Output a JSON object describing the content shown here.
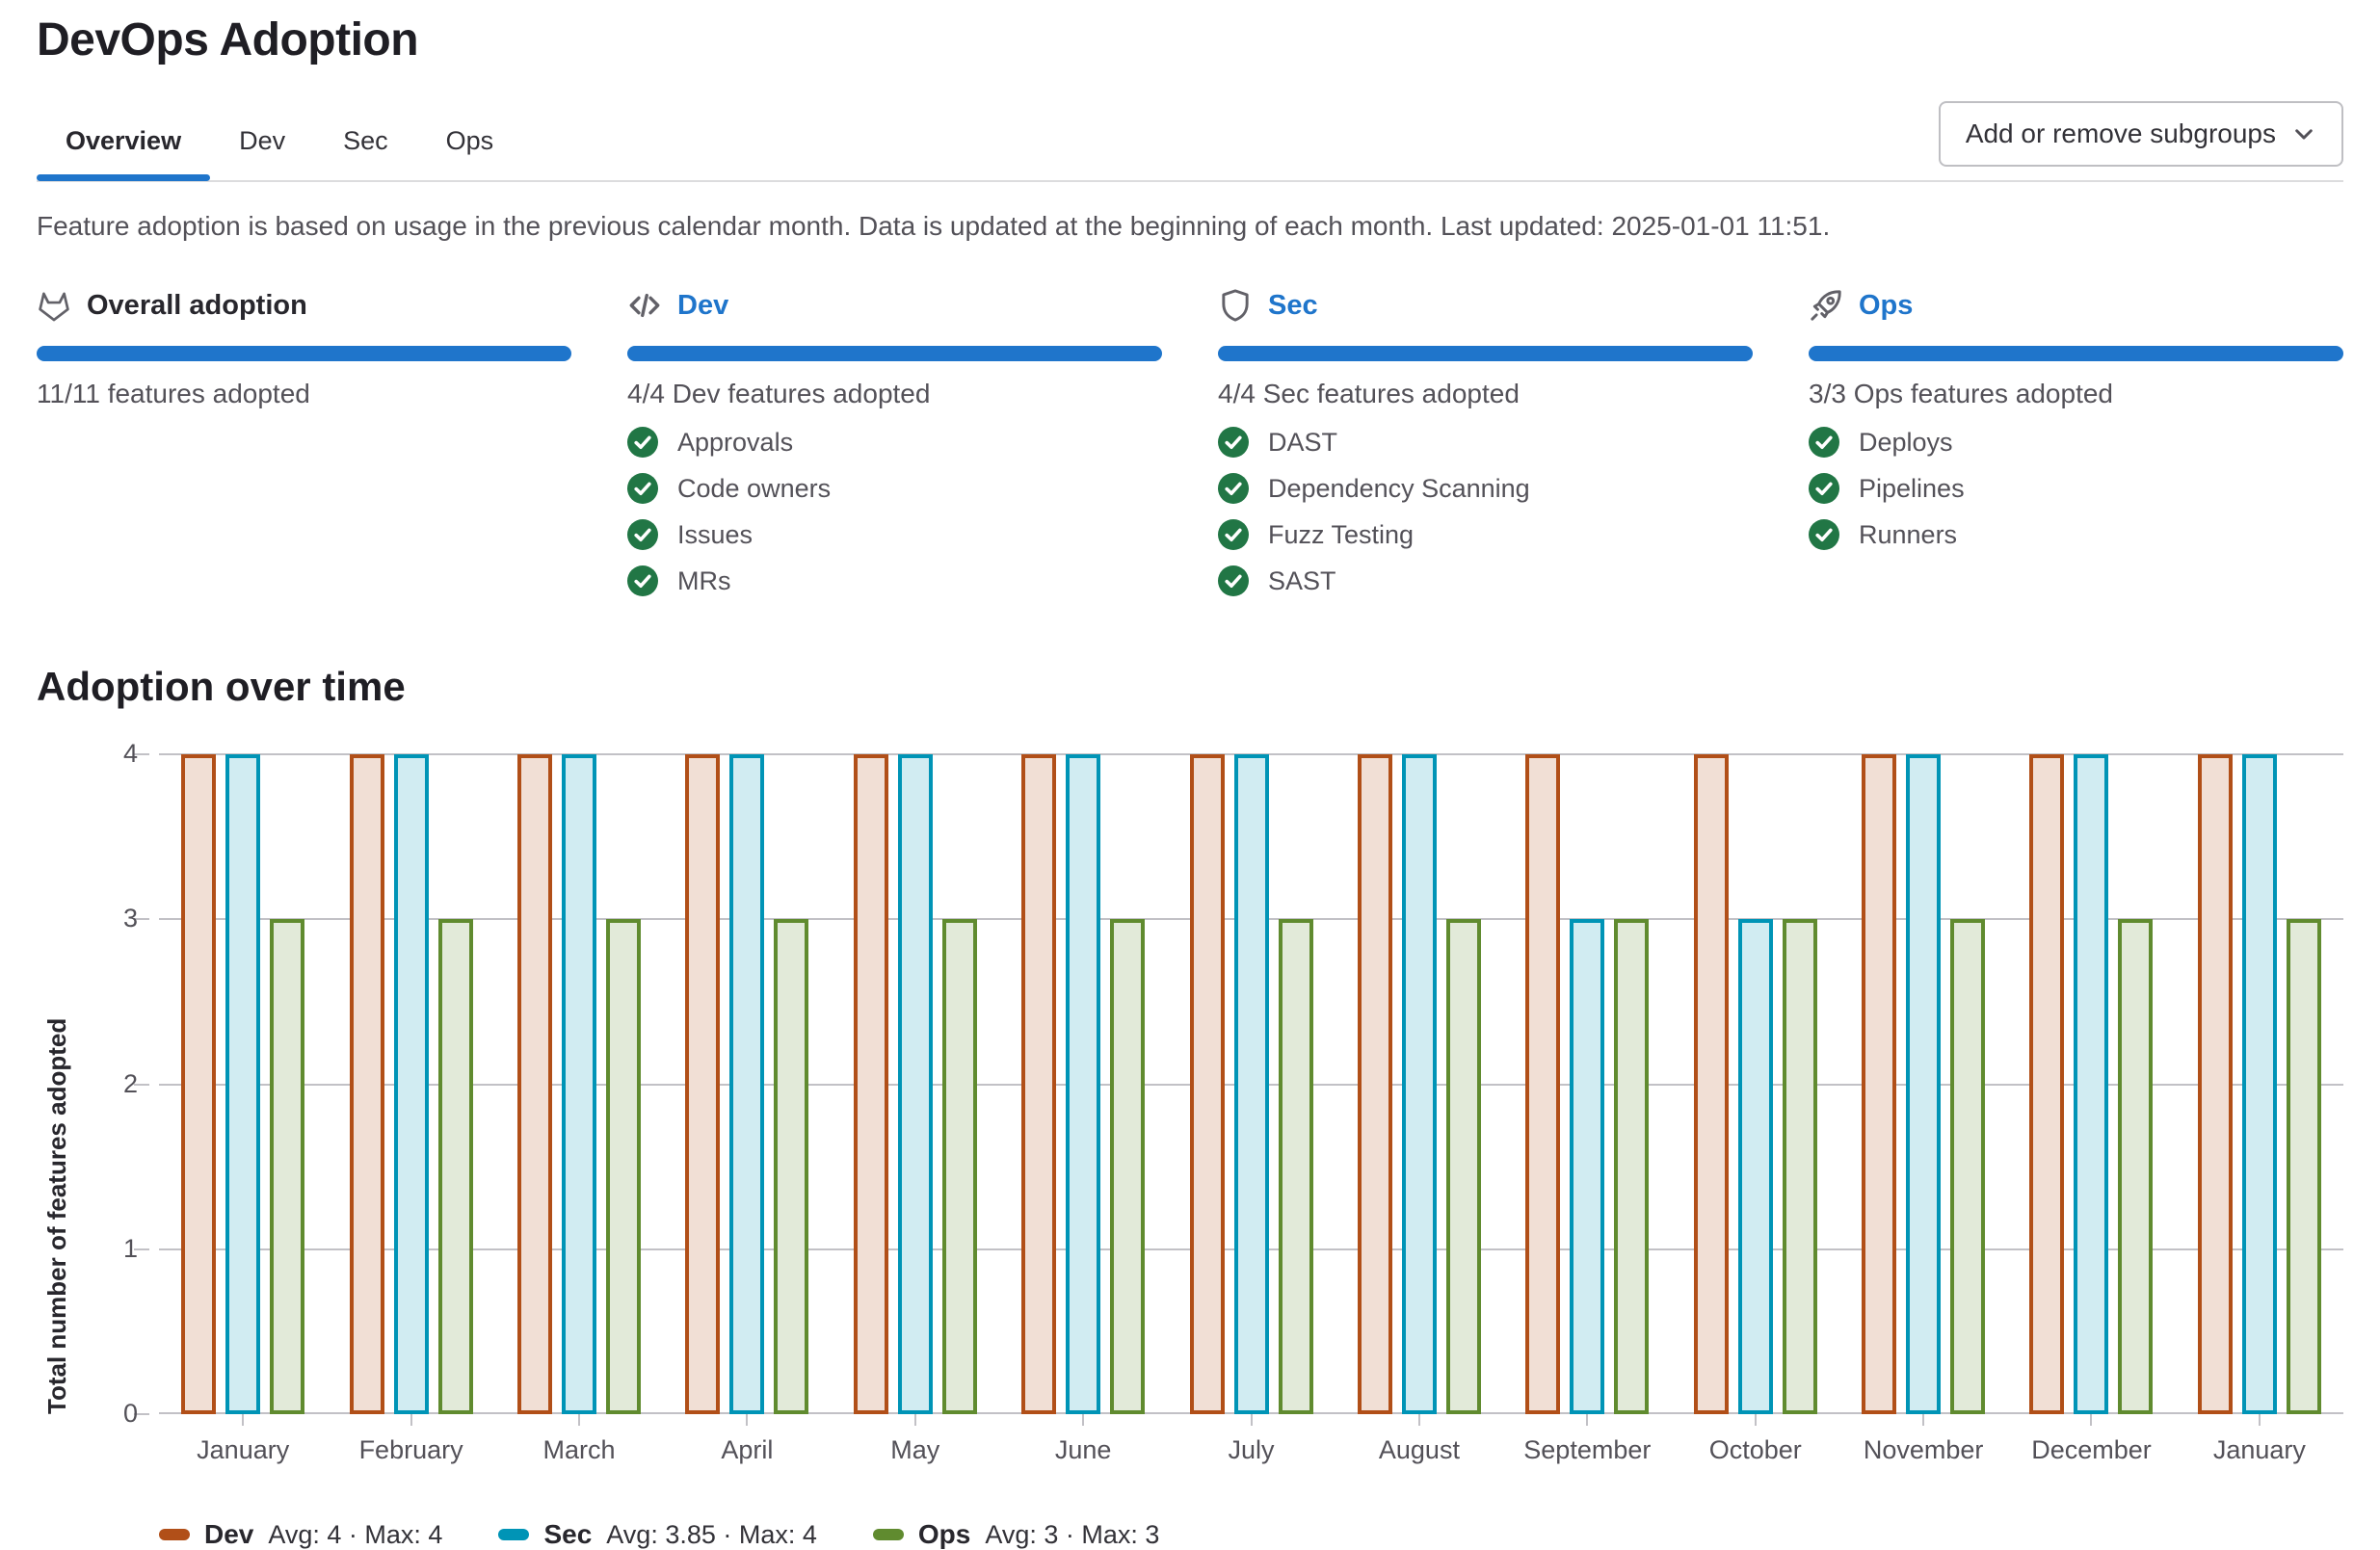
{
  "header": {
    "title": "DevOps Adoption",
    "subgroups_button": {
      "label": "Add or remove subgroups",
      "icon": "chevron-down-icon"
    }
  },
  "tabs": [
    {
      "label": "Overview",
      "active": true
    },
    {
      "label": "Dev",
      "active": false
    },
    {
      "label": "Sec",
      "active": false
    },
    {
      "label": "Ops",
      "active": false
    }
  ],
  "description": "Feature adoption is based on usage in the previous calendar month. Data is updated at the beginning of each month. Last updated: 2025-01-01 11:51.",
  "feature_check_icon": "check-circle-icon",
  "cards": [
    {
      "title": "Overall adoption",
      "icon": "gitlab-tanuki-icon",
      "link": false,
      "progress_label": "11/11 features adopted",
      "features": []
    },
    {
      "title": "Dev",
      "icon": "code-icon",
      "link": true,
      "progress_label": "4/4 Dev features adopted",
      "features": [
        "Approvals",
        "Code owners",
        "Issues",
        "MRs"
      ]
    },
    {
      "title": "Sec",
      "icon": "shield-icon",
      "link": true,
      "progress_label": "4/4 Sec features adopted",
      "features": [
        "DAST",
        "Dependency Scanning",
        "Fuzz Testing",
        "SAST"
      ]
    },
    {
      "title": "Ops",
      "icon": "rocket-icon",
      "link": true,
      "progress_label": "3/3 Ops features adopted",
      "features": [
        "Deploys",
        "Pipelines",
        "Runners"
      ]
    }
  ],
  "colors": {
    "accent_blue": "#1f75cb",
    "link_blue": "#1f75cb",
    "check_green": "#217645",
    "grid_line": "#c2c1c6"
  },
  "chart_data": {
    "type": "bar",
    "title": "Adoption over time",
    "ylabel": "Total number of features adopted",
    "categories": [
      "January",
      "February",
      "March",
      "April",
      "May",
      "June",
      "July",
      "August",
      "September",
      "October",
      "November",
      "December",
      "January"
    ],
    "yticks": [
      0,
      1,
      2,
      3,
      4
    ],
    "ylim": [
      0,
      4
    ],
    "grid": true,
    "legend_position": "bottom",
    "series": [
      {
        "name": "Dev",
        "color": "#b14f18",
        "fill": "#f1dfd5",
        "values": [
          4,
          4,
          4,
          4,
          4,
          4,
          4,
          4,
          4,
          4,
          4,
          4,
          4
        ],
        "avg": 4,
        "max": 4,
        "legend_stats": "Avg: 4 · Max: 4"
      },
      {
        "name": "Sec",
        "color": "#0094b6",
        "fill": "#d1ecf2",
        "values": [
          4,
          4,
          4,
          4,
          4,
          4,
          4,
          4,
          3,
          3,
          4,
          4,
          4
        ],
        "avg": 3.85,
        "max": 4,
        "legend_stats": "Avg: 3.85 · Max: 4"
      },
      {
        "name": "Ops",
        "color": "#608b2f",
        "fill": "#e2ead9",
        "values": [
          3,
          3,
          3,
          3,
          3,
          3,
          3,
          3,
          3,
          3,
          3,
          3,
          3
        ],
        "avg": 3,
        "max": 3,
        "legend_stats": "Avg: 3 · Max: 3"
      }
    ]
  }
}
